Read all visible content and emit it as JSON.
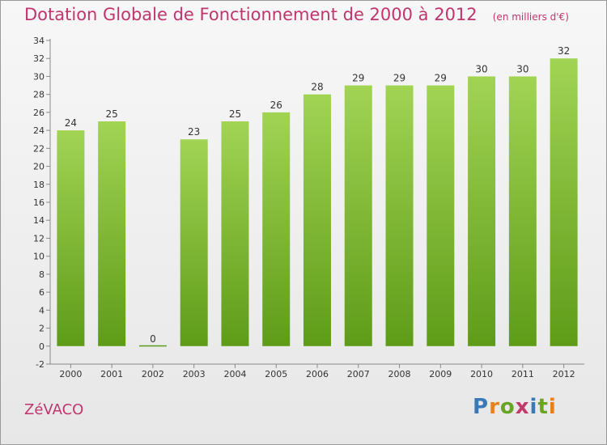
{
  "title": "Dotation Globale de Fonctionnement de 2000 à 2012",
  "unit_note": "(en milliers d'€)",
  "commune": "ZéVACO",
  "logo": {
    "text": "Proxiti",
    "colors": [
      "#3a78b8",
      "#e8811a",
      "#6aa423",
      "#c23a6a",
      "#3a78b8",
      "#6aa423",
      "#e8811a"
    ]
  },
  "chart_data": {
    "type": "bar",
    "categories": [
      "2000",
      "2001",
      "2002",
      "2003",
      "2004",
      "2005",
      "2006",
      "2007",
      "2008",
      "2009",
      "2010",
      "2011",
      "2012"
    ],
    "values": [
      24,
      25,
      0,
      23,
      25,
      26,
      28,
      29,
      29,
      29,
      30,
      30,
      32
    ],
    "ylim": [
      -2,
      34
    ],
    "yticks": [
      -2,
      0,
      2,
      4,
      6,
      8,
      10,
      12,
      14,
      16,
      18,
      20,
      22,
      24,
      26,
      28,
      30,
      32,
      34
    ],
    "grid": false,
    "colors": {
      "bar_top": "#a2d454",
      "bar_bottom": "#5e9c18",
      "title": "#c0356e"
    }
  }
}
